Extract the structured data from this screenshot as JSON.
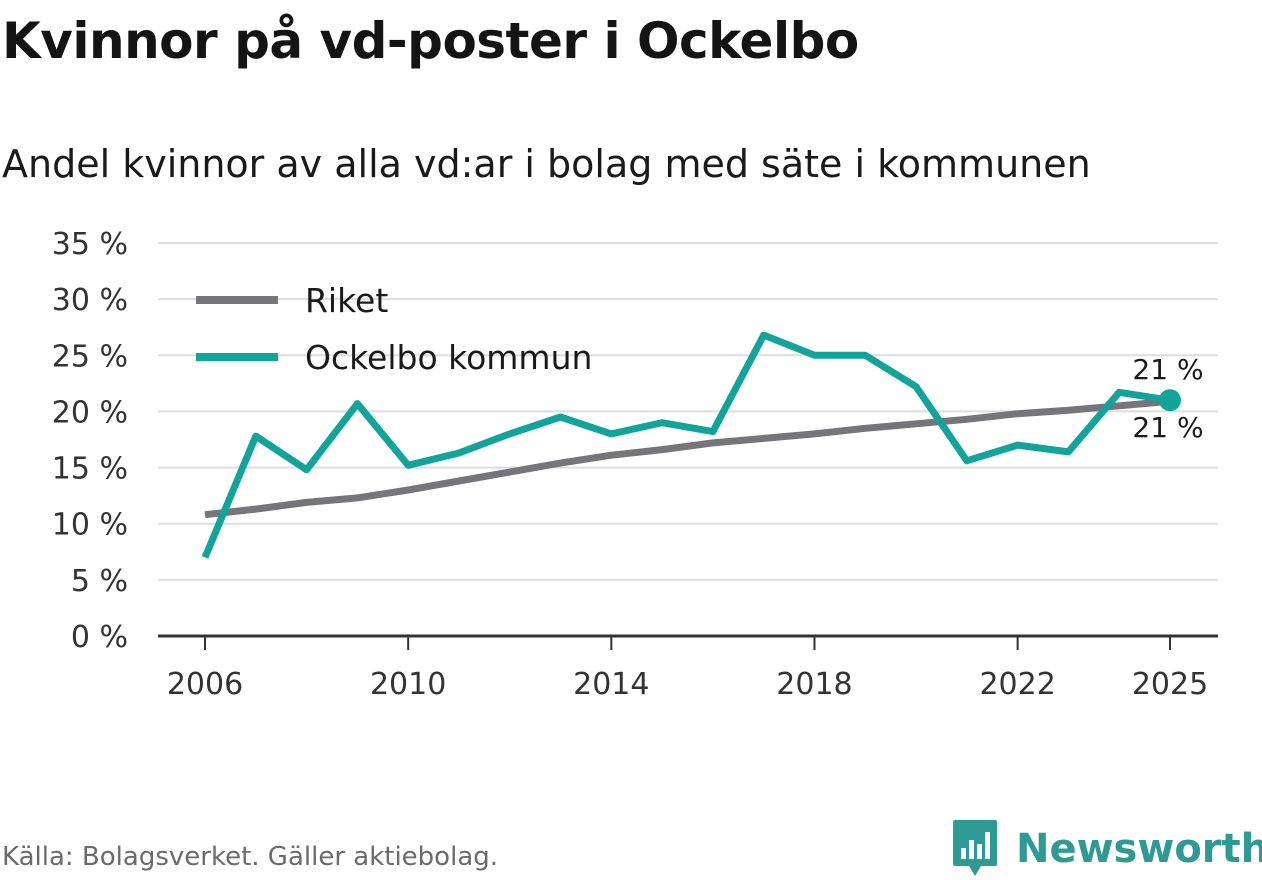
{
  "title": "Kvinnor på vd-poster i Ockelbo",
  "subtitle": "Andel kvinnor av alla vd:ar i bolag med säte i kommunen",
  "source": "Källa: Bolagsverket. Gäller aktiebolag.",
  "brand": "Newsworthy",
  "colors": {
    "riket": "#76757a",
    "ockelbo": "#12a39a",
    "grid": "#dddddd",
    "axis": "#333333",
    "brand": "#2e9a93"
  },
  "chart_data": {
    "type": "line",
    "title": "Kvinnor på vd-poster i Ockelbo",
    "subtitle": "Andel kvinnor av alla vd:ar i bolag med säte i kommunen",
    "x": [
      2006,
      2007,
      2008,
      2009,
      2010,
      2011,
      2012,
      2013,
      2014,
      2015,
      2016,
      2017,
      2018,
      2019,
      2020,
      2021,
      2022,
      2023,
      2024,
      2025
    ],
    "series": [
      {
        "name": "Riket",
        "color": "#76757a",
        "values": [
          10.8,
          11.3,
          11.9,
          12.3,
          13.0,
          13.8,
          14.6,
          15.4,
          16.1,
          16.6,
          17.2,
          17.6,
          18.0,
          18.5,
          18.9,
          19.3,
          19.8,
          20.1,
          20.5,
          20.9
        ]
      },
      {
        "name": "Ockelbo kommun",
        "color": "#12a39a",
        "values": [
          7.0,
          17.8,
          14.8,
          20.7,
          15.2,
          16.3,
          18.0,
          19.5,
          18.0,
          19.0,
          18.2,
          26.8,
          25.0,
          25.0,
          22.2,
          15.6,
          17.0,
          16.4,
          21.7,
          21.0
        ]
      }
    ],
    "ylim": [
      0,
      35
    ],
    "yticks": [
      0,
      5,
      10,
      15,
      20,
      25,
      30,
      35
    ],
    "ytick_labels": [
      "0 %",
      "5 %",
      "10 %",
      "15 %",
      "20 %",
      "25 %",
      "30 %",
      "35 %"
    ],
    "xticks": [
      2006,
      2010,
      2014,
      2018,
      2022,
      2025
    ],
    "xtick_labels": [
      "2006",
      "2010",
      "2014",
      "2018",
      "2022",
      "2025"
    ],
    "end_labels": {
      "ockelbo": "21 %",
      "riket": "21 %"
    },
    "legend": [
      "Riket",
      "Ockelbo kommun"
    ],
    "legend_position": "top-left",
    "grid": true,
    "xlabel": "",
    "ylabel": ""
  }
}
